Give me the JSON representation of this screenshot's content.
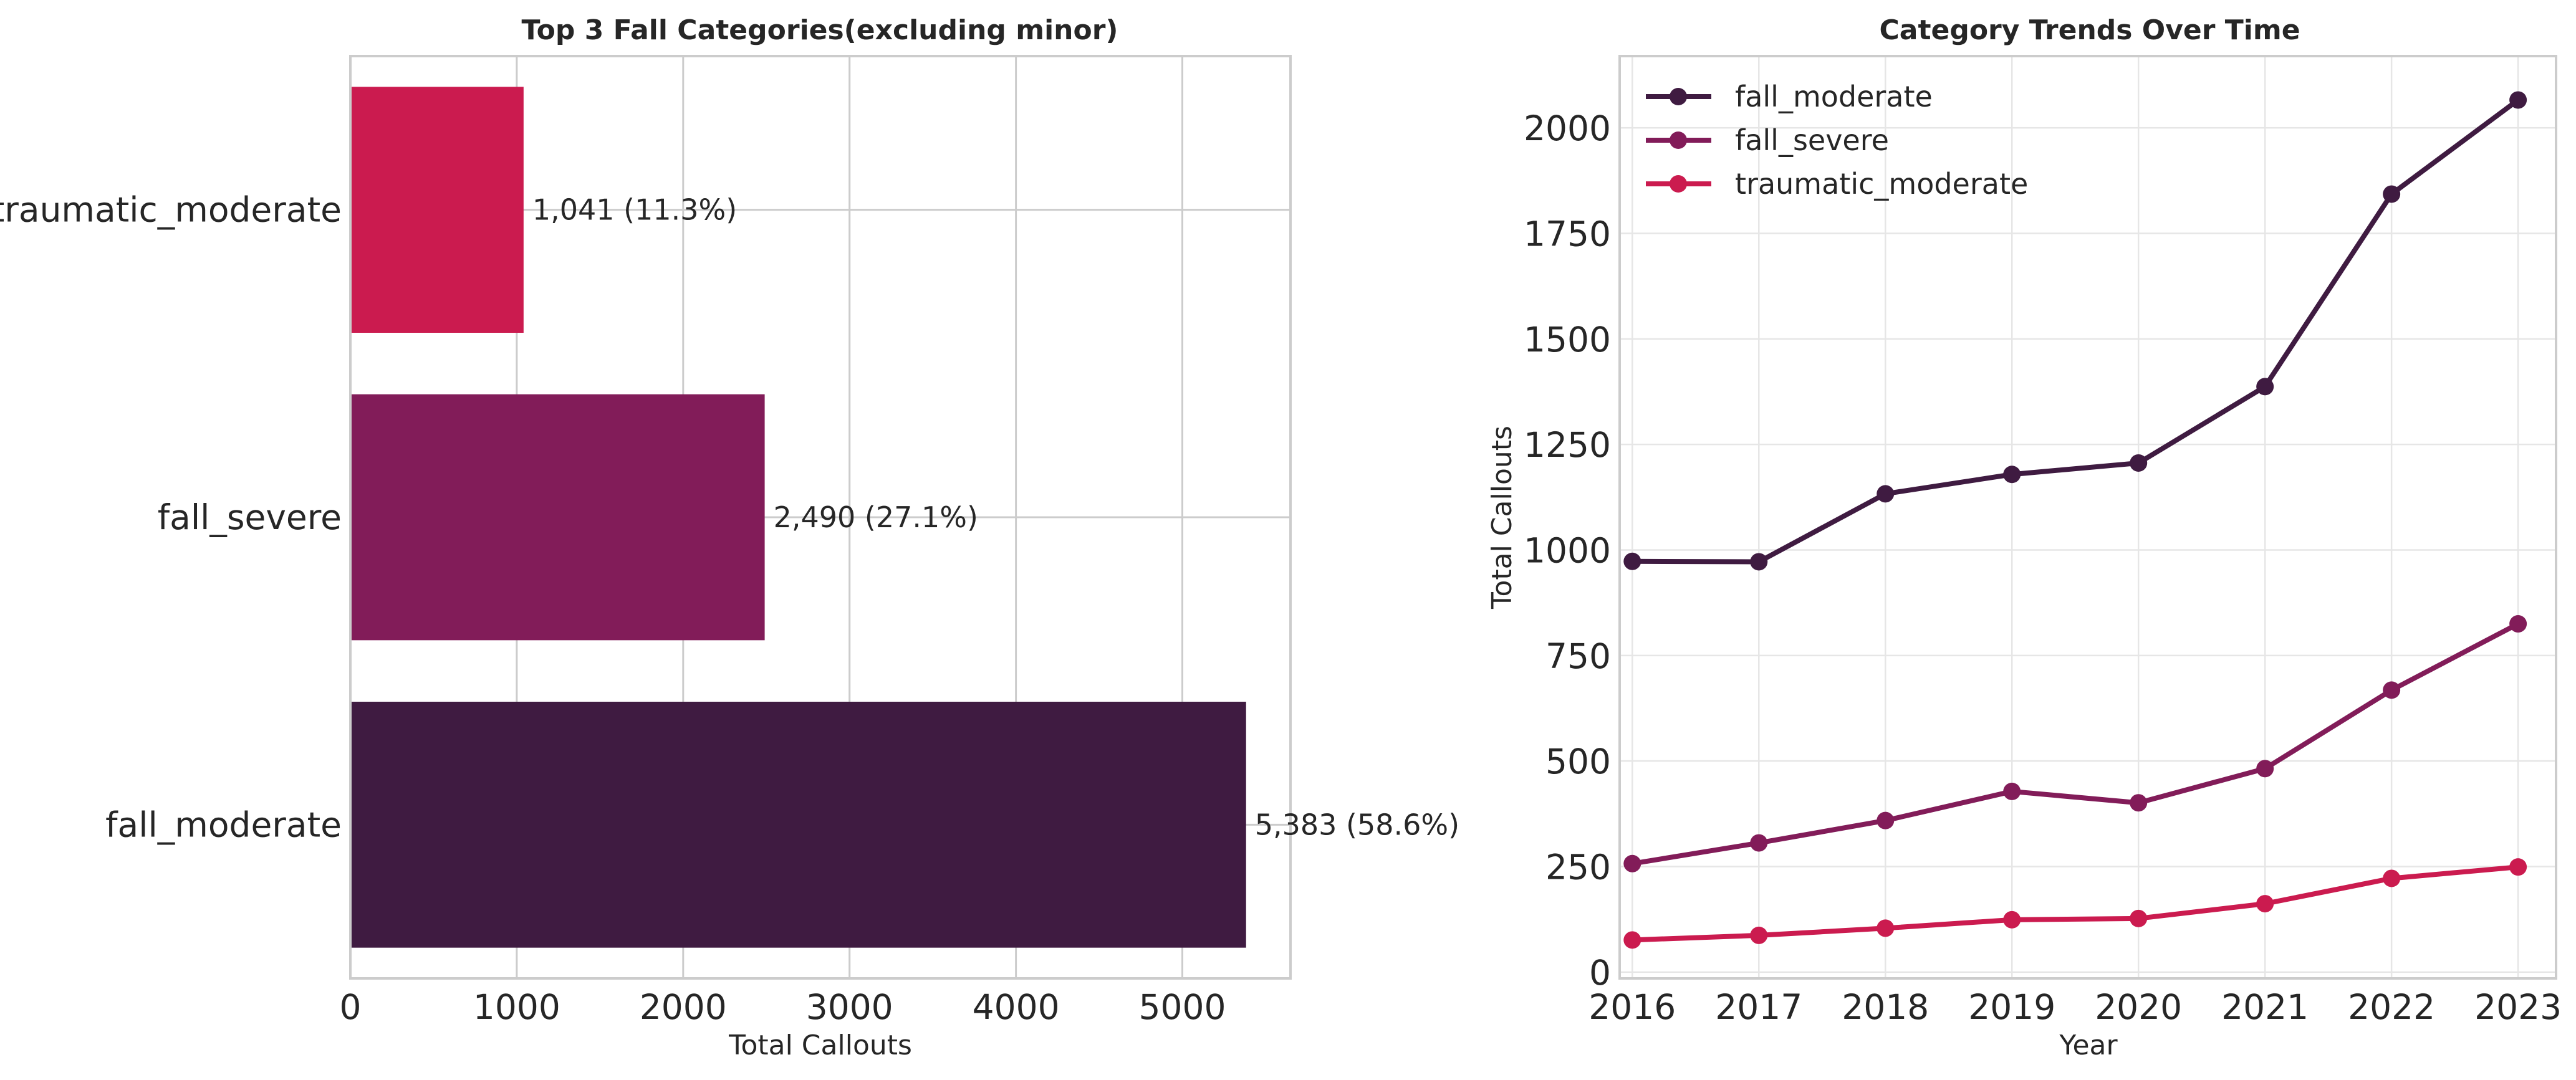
{
  "chart_data": [
    {
      "type": "bar",
      "orientation": "horizontal",
      "title": "Top 3 Fall Categories(excluding minor)",
      "xlabel": "Total Callouts",
      "ylabel": "",
      "categories": [
        "fall_moderate",
        "fall_severe",
        "traumatic_moderate"
      ],
      "values": [
        5383,
        2490,
        1041
      ],
      "value_labels": [
        "5,383 (58.6%)",
        "2,490 (27.1%)",
        "1,041 (11.3%)"
      ],
      "colors": [
        "#3f1b41",
        "#821c59",
        "#cb1b4f"
      ],
      "xlim": [
        0,
        5650
      ],
      "xticks": [
        0,
        1000,
        2000,
        3000,
        4000,
        5000
      ],
      "grid": true
    },
    {
      "type": "line",
      "title": "Category Trends Over Time",
      "xlabel": "Year",
      "ylabel": "Total Callouts",
      "x": [
        2016,
        2017,
        2018,
        2019,
        2020,
        2021,
        2022,
        2023
      ],
      "series": [
        {
          "name": "fall_moderate",
          "color": "#3f1b41",
          "values": [
            973,
            972,
            1133,
            1179,
            1206,
            1387,
            1843,
            2066
          ]
        },
        {
          "name": "fall_severe",
          "color": "#821c59",
          "values": [
            257,
            306,
            359,
            428,
            401,
            482,
            668,
            825
          ]
        },
        {
          "name": "traumatic_moderate",
          "color": "#cb1b4f",
          "values": [
            76,
            87,
            104,
            124,
            127,
            162,
            222,
            249
          ]
        }
      ],
      "xlim": [
        2015.9,
        2023.3
      ],
      "ylim": [
        -15,
        2170
      ],
      "yticks": [
        0,
        250,
        500,
        750,
        1000,
        1250,
        1500,
        1750,
        2000
      ],
      "legend": "top-left",
      "grid": true
    }
  ]
}
